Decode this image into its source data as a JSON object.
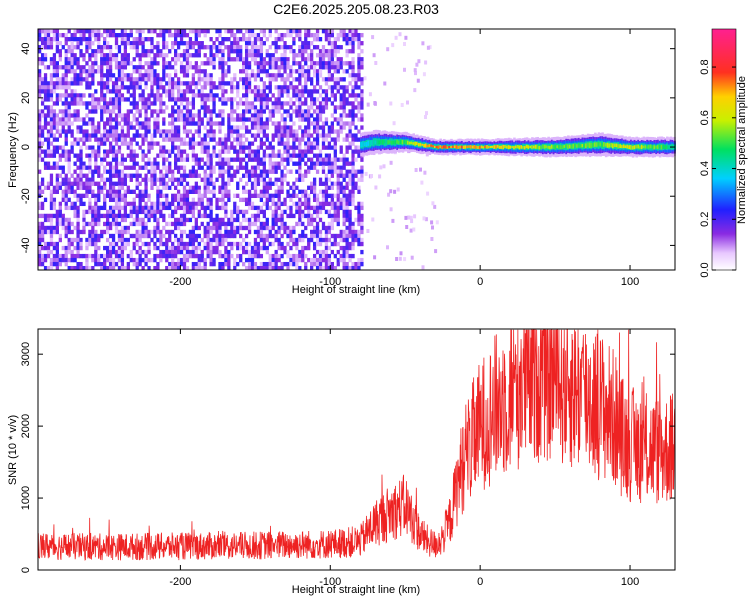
{
  "title": "C2E6.2025.205.08.23.R03",
  "chart_data": [
    {
      "type": "heatmap",
      "xlabel": "Height of straight line (km)",
      "ylabel": "Frequency (Hz)",
      "xlim": [
        -295,
        130
      ],
      "ylim": [
        -50,
        48
      ],
      "xticks": [
        -200,
        -100,
        0,
        100
      ],
      "yticks": [
        -40,
        -20,
        0,
        20,
        40
      ],
      "colorbar": {
        "label": "Normalized spectral amplitude",
        "range": [
          0,
          0.95
        ],
        "ticks": [
          0.0,
          0.2,
          0.4,
          0.6,
          0.8
        ],
        "colormap": "rainbow (white-violet-blue-cyan-green-yellow-red-magenta)"
      },
      "noise_region_x": [
        -295,
        -78
      ],
      "signal_band": [
        {
          "x": -80,
          "freq": 1,
          "width_hz": 6,
          "amp": 0.4
        },
        {
          "x": -70,
          "freq": 2,
          "width_hz": 6,
          "amp": 0.5
        },
        {
          "x": -50,
          "freq": 2,
          "width_hz": 5,
          "amp": 0.6
        },
        {
          "x": -30,
          "freq": 0,
          "width_hz": 4,
          "amp": 0.85
        },
        {
          "x": 0,
          "freq": 0,
          "width_hz": 4,
          "amp": 0.8
        },
        {
          "x": 50,
          "freq": 0,
          "width_hz": 5,
          "amp": 0.6
        },
        {
          "x": 80,
          "freq": 1,
          "width_hz": 6,
          "amp": 0.6
        },
        {
          "x": 100,
          "freq": 0,
          "width_hz": 5,
          "amp": 0.7
        },
        {
          "x": 130,
          "freq": 0,
          "width_hz": 5,
          "amp": 0.5
        }
      ]
    },
    {
      "type": "line",
      "xlabel": "Height of straight line (km)",
      "ylabel": "SNR (10 * v/v)",
      "xlim": [
        -295,
        130
      ],
      "ylim": [
        0,
        3350
      ],
      "xticks": [
        -200,
        -100,
        0,
        100
      ],
      "yticks": [
        0,
        1000,
        2000,
        3000
      ],
      "color": "#ee2222",
      "series": [
        {
          "x": [
            -295,
            -250,
            -200,
            -150,
            -100,
            -80,
            -70,
            -60,
            -50,
            -45,
            -40,
            -35,
            -30,
            -25,
            -20,
            -15,
            -10,
            -5,
            0,
            10,
            20,
            30,
            40,
            50,
            60,
            70,
            80,
            90,
            95,
            100,
            110,
            120,
            130
          ],
          "values": [
            330,
            320,
            330,
            340,
            360,
            400,
            650,
            800,
            900,
            700,
            500,
            400,
            350,
            450,
            700,
            1200,
            1600,
            1800,
            2000,
            2250,
            2450,
            2600,
            2750,
            2700,
            2550,
            2450,
            2300,
            2100,
            1850,
            1750,
            1700,
            1650,
            1700
          ]
        }
      ]
    }
  ]
}
